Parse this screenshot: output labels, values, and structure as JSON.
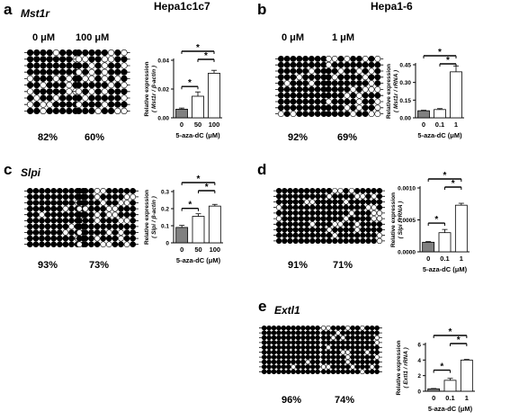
{
  "headers": {
    "left": "Hepa1c1c7",
    "right": "Hepa1-6"
  },
  "panels": [
    {
      "letter": "a",
      "gene": "Mst1r",
      "conc_left": "0 μM",
      "conc_right": "100 μM",
      "pct_left": "82%",
      "pct_right": "60%",
      "methylation_fraction": [
        0.82,
        0.6
      ],
      "chart_id": "chart-a"
    },
    {
      "letter": "b",
      "gene": "",
      "conc_left": "0 μM",
      "conc_right": "1 μM",
      "pct_left": "92%",
      "pct_right": "69%",
      "methylation_fraction": [
        0.92,
        0.69
      ],
      "chart_id": "chart-b"
    },
    {
      "letter": "c",
      "gene": "Slpi",
      "conc_left": "",
      "conc_right": "",
      "pct_left": "93%",
      "pct_right": "73%",
      "methylation_fraction": [
        0.93,
        0.73
      ],
      "chart_id": "chart-c"
    },
    {
      "letter": "d",
      "gene": "",
      "conc_left": "",
      "conc_right": "",
      "pct_left": "91%",
      "pct_right": "71%",
      "methylation_fraction": [
        0.91,
        0.71
      ],
      "chart_id": "chart-d"
    },
    {
      "letter": "e",
      "gene": "Extl1",
      "conc_left": "",
      "conc_right": "",
      "pct_left": "96%",
      "pct_right": "74%",
      "methylation_fraction": [
        0.96,
        0.74
      ],
      "chart_id": "chart-e"
    }
  ],
  "colors": {
    "control_bar": "#808080",
    "treated_bar": "#ffffff",
    "filled_cpg": "#000000",
    "open_cpg": "#ffffff"
  },
  "chart_data": [
    {
      "id": "chart-a",
      "type": "bar",
      "categories": [
        "0",
        "50",
        "100"
      ],
      "values": [
        0.006,
        0.015,
        0.031
      ],
      "errors": [
        0.0008,
        0.003,
        0.002
      ],
      "bar_colors": [
        "#808080",
        "#ffffff",
        "#ffffff"
      ],
      "ylim": [
        0,
        0.04
      ],
      "yticks": [
        "0.00",
        "0.02",
        "0.04"
      ],
      "ytick_values": [
        0,
        0.02,
        0.04
      ],
      "ylabel": "Relative expression",
      "ylabel2": "( Mst1r / β-actin )",
      "xlabel": "5-aza-dC (μM)",
      "significance": [
        {
          "from": 0,
          "to": 1,
          "label": "*"
        },
        {
          "from": 1,
          "to": 2,
          "label": "*"
        },
        {
          "from": 0,
          "to": 2,
          "label": "*"
        }
      ]
    },
    {
      "id": "chart-b",
      "type": "bar",
      "categories": [
        "0",
        "0.1",
        "1"
      ],
      "values": [
        0.06,
        0.07,
        0.39
      ],
      "errors": [
        0.004,
        0.008,
        0.05
      ],
      "bar_colors": [
        "#808080",
        "#ffffff",
        "#ffffff"
      ],
      "ylim": [
        0,
        0.45
      ],
      "yticks": [
        "0.00",
        "0.15",
        "0.30",
        "0.45"
      ],
      "ytick_values": [
        0,
        0.15,
        0.3,
        0.45
      ],
      "ylabel": "Relative expression",
      "ylabel2": "( Mst1r / rRNA )",
      "xlabel": "5-aza-dC (μM)",
      "significance": [
        {
          "from": 1,
          "to": 2,
          "label": "*"
        },
        {
          "from": 0,
          "to": 2,
          "label": "*"
        }
      ]
    },
    {
      "id": "chart-c",
      "type": "bar",
      "categories": [
        "0",
        "50",
        "100"
      ],
      "values": [
        0.09,
        0.155,
        0.215
      ],
      "errors": [
        0.012,
        0.015,
        0.01
      ],
      "bar_colors": [
        "#808080",
        "#ffffff",
        "#ffffff"
      ],
      "ylim": [
        0,
        0.3
      ],
      "yticks": [
        "0",
        "0.1",
        "0.2",
        "0.3"
      ],
      "ytick_values": [
        0,
        0.1,
        0.2,
        0.3
      ],
      "ylabel": "Relative expression",
      "ylabel2": "( Slpi / β-actin )",
      "xlabel": "5-aza-dC (μM)",
      "significance": [
        {
          "from": 0,
          "to": 1,
          "label": "*"
        },
        {
          "from": 1,
          "to": 2,
          "label": "*"
        },
        {
          "from": 0,
          "to": 2,
          "label": "*"
        }
      ]
    },
    {
      "id": "chart-d",
      "type": "bar",
      "categories": [
        "0",
        "0.1",
        "1"
      ],
      "values": [
        0.00015,
        0.0003,
        0.00073
      ],
      "errors": [
        1e-05,
        5e-05,
        3e-05
      ],
      "bar_colors": [
        "#808080",
        "#ffffff",
        "#ffffff"
      ],
      "ylim": [
        0,
        0.001
      ],
      "yticks": [
        "0.0000",
        "0.0005",
        "0.0010"
      ],
      "ytick_values": [
        0,
        0.0005,
        0.001
      ],
      "ylabel": "Relative expression",
      "ylabel2": "( Slpi / rRNA )",
      "xlabel": "5-aza-dC (μM)",
      "significance": [
        {
          "from": 0,
          "to": 1,
          "label": "*"
        },
        {
          "from": 1,
          "to": 2,
          "label": "*"
        },
        {
          "from": 0,
          "to": 2,
          "label": "*"
        }
      ]
    },
    {
      "id": "chart-e",
      "type": "bar",
      "categories": [
        "0",
        "0.1",
        "1"
      ],
      "values": [
        0.3,
        1.4,
        4.0
      ],
      "errors": [
        0.05,
        0.25,
        0.08
      ],
      "bar_colors": [
        "#808080",
        "#ffffff",
        "#ffffff"
      ],
      "ylim": [
        0,
        6
      ],
      "yticks": [
        "0",
        "2",
        "4",
        "6"
      ],
      "ytick_values": [
        0,
        2,
        4,
        6
      ],
      "ylabel": "Relative expression",
      "ylabel2": "( Extl1 / rRNA )",
      "xlabel": "5-aza-dC (μM)",
      "significance": [
        {
          "from": 0,
          "to": 1,
          "label": "*"
        },
        {
          "from": 1,
          "to": 2,
          "label": "*"
        },
        {
          "from": 0,
          "to": 2,
          "label": "*"
        }
      ]
    }
  ]
}
